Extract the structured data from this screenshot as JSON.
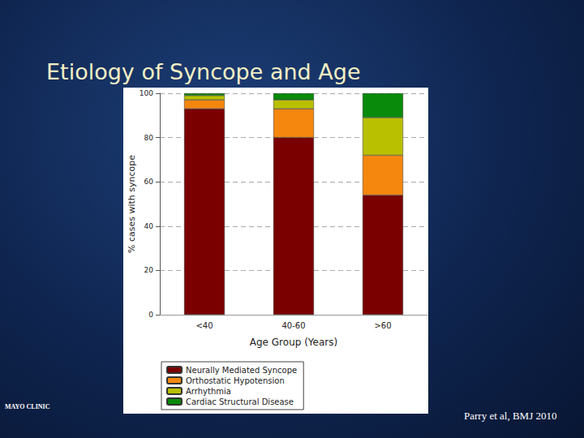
{
  "chart_data": {
    "type": "bar",
    "title": "Etiology of Syncope and Age",
    "x_label": "Age Group (Years)",
    "y_label": "% cases with syncope",
    "categories": [
      "<40",
      "40-60",
      ">60"
    ],
    "series": [
      {
        "name": "Neurally Mediated Syncope",
        "color": "#7a0000",
        "values": [
          93,
          80,
          54
        ]
      },
      {
        "name": "Orthostatic Hypotension",
        "color": "#f5870f",
        "values": [
          4,
          13,
          18
        ]
      },
      {
        "name": "Arrhythmia",
        "color": "#b9c000",
        "values": [
          2,
          4,
          17
        ]
      },
      {
        "name": "Cardiac Structural Disease",
        "color": "#0a8a0a",
        "values": [
          1,
          3,
          11
        ]
      }
    ],
    "stacked": true,
    "ylim": [
      0,
      100
    ],
    "yticks": [
      0,
      20,
      40,
      60,
      80,
      100
    ],
    "grid": true,
    "legend": "bottom",
    "annotations": [
      "Parry et al, BMJ 2010",
      "MAYO CLINIC"
    ]
  }
}
